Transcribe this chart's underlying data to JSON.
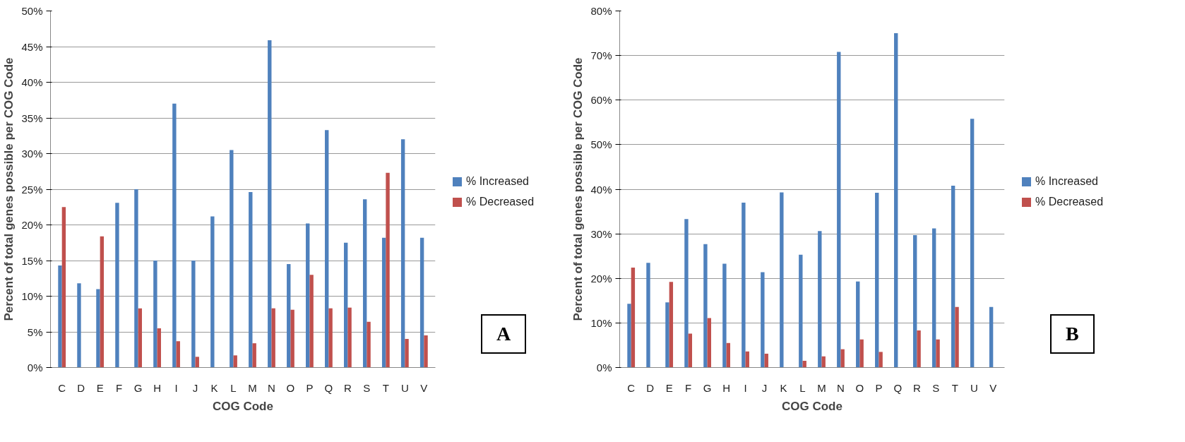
{
  "chart_data": [
    {
      "type": "bar",
      "xlabel": "COG Code",
      "ylabel": "Percent of total genes possible per COG Code",
      "annotations": [
        "A"
      ],
      "categories": [
        "C",
        "D",
        "E",
        "F",
        "G",
        "H",
        "I",
        "J",
        "K",
        "L",
        "M",
        "N",
        "O",
        "P",
        "Q",
        "R",
        "S",
        "T",
        "U",
        "V"
      ],
      "series": [
        {
          "name": "% Increased",
          "color": "#4f81bd",
          "values": [
            14.3,
            11.8,
            11.0,
            23.1,
            25.0,
            15.0,
            37.0,
            15.0,
            21.2,
            30.5,
            24.6,
            45.9,
            14.5,
            20.2,
            33.3,
            17.5,
            23.6,
            18.2,
            32.0,
            18.2
          ]
        },
        {
          "name": "% Decreased",
          "color": "#c0504d",
          "values": [
            22.5,
            null,
            18.4,
            null,
            8.3,
            5.5,
            3.7,
            1.5,
            null,
            1.7,
            3.4,
            8.3,
            8.1,
            13.0,
            8.3,
            8.4,
            6.4,
            27.3,
            4.0,
            4.5
          ]
        }
      ],
      "ylim": [
        0,
        50
      ],
      "yticks": [
        {
          "value": 0,
          "label": "0%"
        },
        {
          "value": 5,
          "label": "5%"
        },
        {
          "value": 10,
          "label": "10%"
        },
        {
          "value": 15,
          "label": "15%"
        },
        {
          "value": 20,
          "label": "20%"
        },
        {
          "value": 25,
          "label": "25%"
        },
        {
          "value": 30,
          "label": "30%"
        },
        {
          "value": 35,
          "label": "35%"
        },
        {
          "value": 40,
          "label": "40%"
        },
        {
          "value": 45,
          "label": "45%"
        },
        {
          "value": 50,
          "label": "50%"
        }
      ],
      "grid": "y",
      "legend": "right"
    },
    {
      "type": "bar",
      "xlabel": "COG Code",
      "ylabel": "Percent of total genes possible per COG Code",
      "annotations": [
        "B"
      ],
      "categories": [
        "C",
        "D",
        "E",
        "F",
        "G",
        "H",
        "I",
        "J",
        "K",
        "L",
        "M",
        "N",
        "O",
        "P",
        "Q",
        "R",
        "S",
        "T",
        "U",
        "V"
      ],
      "series": [
        {
          "name": "% Increased",
          "color": "#4f81bd",
          "values": [
            14.3,
            23.5,
            14.6,
            33.3,
            27.7,
            23.3,
            37.0,
            21.4,
            39.3,
            25.3,
            30.6,
            70.8,
            19.3,
            39.2,
            75.0,
            29.7,
            31.2,
            40.8,
            55.8,
            13.6
          ]
        },
        {
          "name": "% Decreased",
          "color": "#c0504d",
          "values": [
            22.4,
            null,
            19.2,
            7.6,
            11.1,
            5.5,
            3.6,
            3.1,
            null,
            1.5,
            2.5,
            4.1,
            6.3,
            3.5,
            null,
            8.3,
            6.3,
            13.6,
            null,
            null
          ]
        }
      ],
      "ylim": [
        0,
        80
      ],
      "yticks": [
        {
          "value": 0,
          "label": "0%"
        },
        {
          "value": 10,
          "label": "10%"
        },
        {
          "value": 20,
          "label": "20%"
        },
        {
          "value": 30,
          "label": "30%"
        },
        {
          "value": 40,
          "label": "40%"
        },
        {
          "value": 50,
          "label": "50%"
        },
        {
          "value": 60,
          "label": "60%"
        },
        {
          "value": 70,
          "label": "70%"
        },
        {
          "value": 80,
          "label": "80%"
        }
      ],
      "grid": "y",
      "legend": "right"
    }
  ]
}
